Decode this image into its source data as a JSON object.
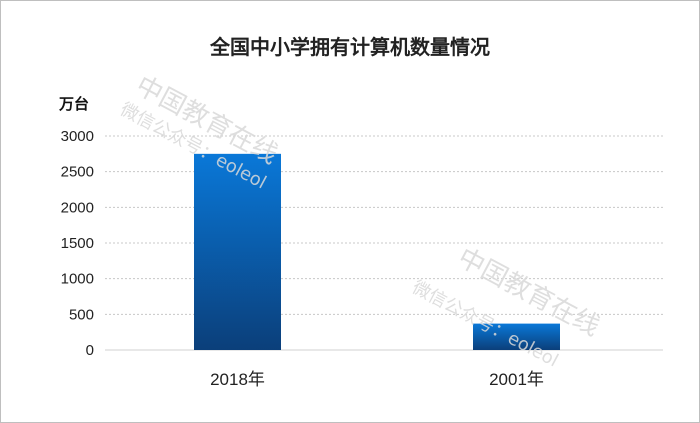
{
  "chart_data": {
    "type": "bar",
    "title": "全国中小学拥有计算机数量情况",
    "ylabel": "万台",
    "categories": [
      "2018年",
      "2001年"
    ],
    "values": [
      2750,
      370
    ],
    "ylim": [
      0,
      3000
    ],
    "yticks": [
      0,
      500,
      1000,
      1500,
      2000,
      2500,
      3000
    ],
    "grid": true,
    "bar_color_top": "#0a78d8",
    "bar_color_bottom": "#0b3f7a"
  },
  "watermark": {
    "lines": [
      "中国教育在线",
      "微信公众号：eoleol"
    ]
  }
}
